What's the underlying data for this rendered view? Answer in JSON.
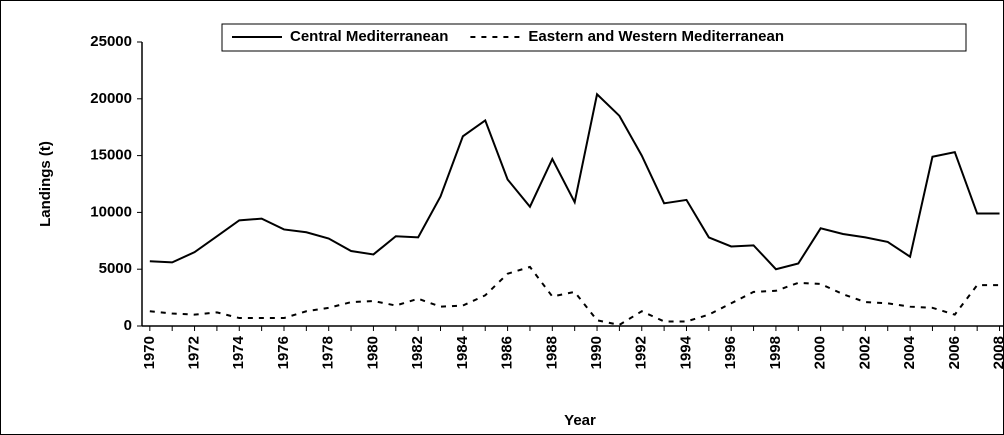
{
  "chart_data": {
    "type": "line",
    "x_label": "Year",
    "y_label": "Landings (t)",
    "x": [
      1970,
      1971,
      1972,
      1973,
      1974,
      1975,
      1976,
      1977,
      1978,
      1979,
      1980,
      1981,
      1982,
      1983,
      1984,
      1985,
      1986,
      1987,
      1988,
      1989,
      1990,
      1991,
      1992,
      1993,
      1994,
      1995,
      1996,
      1997,
      1998,
      1999,
      2000,
      2001,
      2002,
      2003,
      2004,
      2005,
      2006,
      2007,
      2008
    ],
    "series": [
      {
        "name": "Central Mediterranean",
        "color": "#000000",
        "dash": "solid",
        "values": [
          5700,
          5600,
          6500,
          7900,
          9300,
          9450,
          8500,
          8250,
          7700,
          6600,
          6300,
          7900,
          7800,
          11400,
          16700,
          18100,
          12900,
          10500,
          14700,
          10900,
          20400,
          18500,
          15000,
          10800,
          11100,
          7800,
          7000,
          7100,
          5000,
          5500,
          8600,
          8100,
          7800,
          7400,
          6100,
          14900,
          15300,
          9900,
          9900
        ]
      },
      {
        "name": "Eastern and Western Mediterranean",
        "color": "#000000",
        "dash": "dashed",
        "values": [
          1300,
          1100,
          1000,
          1200,
          700,
          700,
          700,
          1300,
          1600,
          2100,
          2200,
          1800,
          2400,
          1700,
          1800,
          2700,
          4600,
          5200,
          2600,
          3000,
          500,
          100,
          1300,
          400,
          400,
          1000,
          2000,
          3000,
          3100,
          3800,
          3700,
          2800,
          2100,
          2000,
          1700,
          1600,
          1000,
          3600,
          3600
        ]
      }
    ],
    "xlim": [
      1969.65,
      2008.2
    ],
    "xticks": [
      1970,
      1972,
      1974,
      1976,
      1978,
      1980,
      1982,
      1984,
      1986,
      1988,
      1990,
      1992,
      1994,
      1996,
      1998,
      2000,
      2002,
      2004,
      2006,
      2008
    ],
    "ylim": [
      0,
      25000
    ],
    "yticks": [
      0,
      5000,
      10000,
      15000,
      20000,
      25000
    ],
    "grid": false,
    "legend": "top"
  }
}
